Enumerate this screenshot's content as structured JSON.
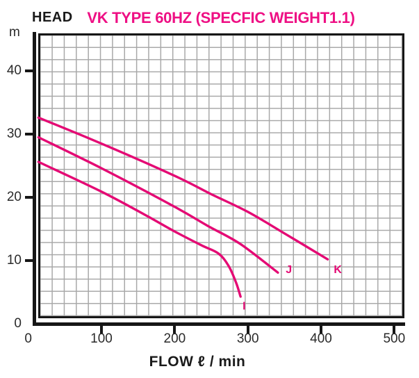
{
  "header": {
    "head_label": "HEAD",
    "title": "VK TYPE 60HZ (SPECFIC WEIGHT1.1)",
    "y_unit": "m"
  },
  "colors": {
    "title": "#ee0f84",
    "curve": "#e40a74",
    "axis": "#161616",
    "grid": "#a8a8a8"
  },
  "chart_data": {
    "type": "line",
    "title": "VK TYPE 60HZ (SPECFIC WEIGHT1.1)",
    "xlabel": "FLOW ℓ / min",
    "ylabel": "HEAD m",
    "xlim": [
      0,
      500
    ],
    "ylim": [
      0,
      45
    ],
    "x_ticks": [
      0,
      100,
      200,
      300,
      400,
      500
    ],
    "y_ticks": [
      0,
      10,
      20,
      30,
      40
    ],
    "grid": true,
    "legend_position": "on-curve-ends",
    "series": [
      {
        "name": "I",
        "points": [
          [
            14,
            25.6
          ],
          [
            100,
            20.9
          ],
          [
            160,
            17.2
          ],
          [
            200,
            14.6
          ],
          [
            237,
            12.4
          ],
          [
            260,
            11.1
          ],
          [
            274,
            9.1
          ],
          [
            284,
            6.5
          ],
          [
            290,
            4.3
          ]
        ],
        "label_at": [
          295,
          2.9
        ]
      },
      {
        "name": "J",
        "points": [
          [
            14,
            29.5
          ],
          [
            100,
            24.6
          ],
          [
            200,
            18.5
          ],
          [
            245,
            15.5
          ],
          [
            290,
            12.6
          ],
          [
            341,
            8.1
          ]
        ],
        "label_at": [
          356,
          8.7
        ]
      },
      {
        "name": "K",
        "points": [
          [
            14,
            32.6
          ],
          [
            100,
            28.5
          ],
          [
            200,
            23.4
          ],
          [
            250,
            20.5
          ],
          [
            300,
            17.7
          ],
          [
            350,
            14.3
          ],
          [
            409,
            10.2
          ]
        ],
        "label_at": [
          423,
          8.7
        ]
      }
    ]
  }
}
